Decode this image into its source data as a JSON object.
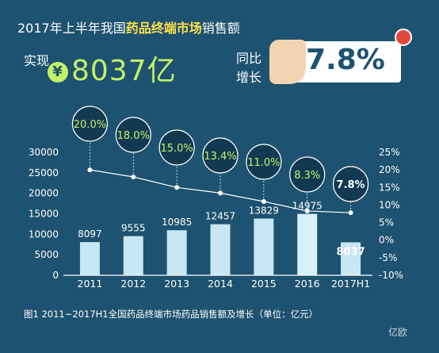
{
  "header": {
    "headline_prefix": "2017年上半年我国",
    "headline_highlight": "药品终端市场",
    "headline_suffix": "销售额",
    "realize_label": "实现",
    "currency_symbol": "¥",
    "amount": "8037亿",
    "growth_label": "同比增长",
    "growth_value": "7.8%"
  },
  "caption": "图1  2011~2017H1全国药品终端市场药品销售额及增长（单位：亿元）",
  "watermark": "亿欧",
  "colors": {
    "background": "#1d5270",
    "bar": "#c6e7f3",
    "bar_highlight": "#d7f1fb",
    "line": "#ffffff",
    "highlight_text": "#c4f06a",
    "headline_highlight": "#ffe04a"
  },
  "chart_data": {
    "type": "bar",
    "categories": [
      "2011",
      "2012",
      "2013",
      "2014",
      "2015",
      "2016",
      "2017H1"
    ],
    "series": [
      {
        "values": [
          8097,
          9555,
          10985,
          12457,
          13829,
          14975,
          8037
        ]
      },
      {
        "type": "line",
        "axis": "right",
        "values": [
          20.0,
          18.0,
          15.0,
          13.4,
          11.0,
          8.3,
          7.8
        ]
      }
    ],
    "bar_labels": [
      "8097",
      "9555",
      "10985",
      "12457",
      "13829",
      "14975",
      "8037"
    ],
    "growth_labels": [
      "20.0%",
      "18.0%",
      "15.0%",
      "13.4%",
      "11.0%",
      "8.3%",
      "7.8%"
    ],
    "left_ticks": [
      "0",
      "5000",
      "10000",
      "15000",
      "20000",
      "25000",
      "30000"
    ],
    "right_ticks": [
      "-10%",
      "-5%",
      "0%",
      "5%",
      "10%",
      "15%",
      "20%",
      "25%"
    ],
    "ylim": [
      0,
      30000
    ],
    "y2lim": [
      -10,
      25
    ],
    "grid": false,
    "legend": "none"
  }
}
